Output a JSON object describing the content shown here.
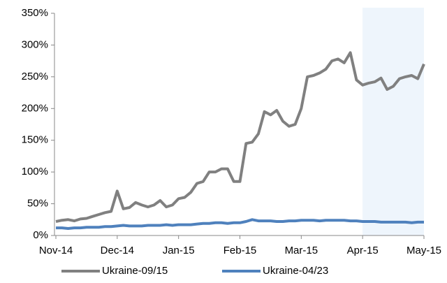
{
  "chart_data": {
    "type": "line",
    "categories": [
      "Nov-14",
      null,
      null,
      null,
      null,
      null,
      null,
      null,
      null,
      null,
      "Dec-14",
      null,
      null,
      null,
      null,
      null,
      null,
      null,
      null,
      null,
      "Jan-15",
      null,
      null,
      null,
      null,
      null,
      null,
      null,
      null,
      null,
      "Feb-15",
      null,
      null,
      null,
      null,
      null,
      null,
      null,
      null,
      null,
      "Mar-15",
      null,
      null,
      null,
      null,
      null,
      null,
      null,
      null,
      null,
      "Apr-15",
      null,
      null,
      null,
      null,
      null,
      null,
      null,
      null,
      null,
      "May-15"
    ],
    "series": [
      {
        "name": "Ukraine-09/15",
        "color": "#808080",
        "values": [
          22,
          24,
          25,
          23,
          26,
          27,
          30,
          33,
          36,
          38,
          70,
          42,
          44,
          52,
          48,
          45,
          48,
          55,
          45,
          48,
          58,
          60,
          68,
          82,
          85,
          100,
          100,
          105,
          105,
          85,
          85,
          145,
          147,
          160,
          195,
          190,
          197,
          180,
          172,
          175,
          200,
          250,
          252,
          256,
          262,
          275,
          278,
          272,
          288,
          245,
          237,
          240,
          242,
          248,
          230,
          235,
          247,
          250,
          252,
          247,
          270
        ]
      },
      {
        "name": "Ukraine-04/23",
        "color": "#4f81bd",
        "values": [
          12,
          12,
          11,
          12,
          12,
          13,
          13,
          13,
          14,
          14,
          15,
          16,
          15,
          15,
          15,
          16,
          16,
          16,
          17,
          16,
          17,
          17,
          17,
          18,
          19,
          19,
          20,
          20,
          19,
          20,
          20,
          22,
          25,
          23,
          23,
          23,
          22,
          22,
          23,
          23,
          24,
          24,
          24,
          23,
          24,
          24,
          24,
          24,
          23,
          23,
          22,
          22,
          22,
          21,
          21,
          21,
          21,
          21,
          20,
          21,
          21
        ]
      }
    ],
    "ylim": [
      0,
      350
    ],
    "yticks": [
      {
        "value": 0,
        "label": "0%"
      },
      {
        "value": 50,
        "label": "50%"
      },
      {
        "value": 100,
        "label": "100%"
      },
      {
        "value": 150,
        "label": "150%"
      },
      {
        "value": 200,
        "label": "200%"
      },
      {
        "value": 250,
        "label": "250%"
      },
      {
        "value": 300,
        "label": "300%"
      },
      {
        "value": 350,
        "label": "350%"
      }
    ],
    "shade": {
      "from": "Apr-15",
      "color": "#eef5fc"
    },
    "legend": "bottom"
  }
}
